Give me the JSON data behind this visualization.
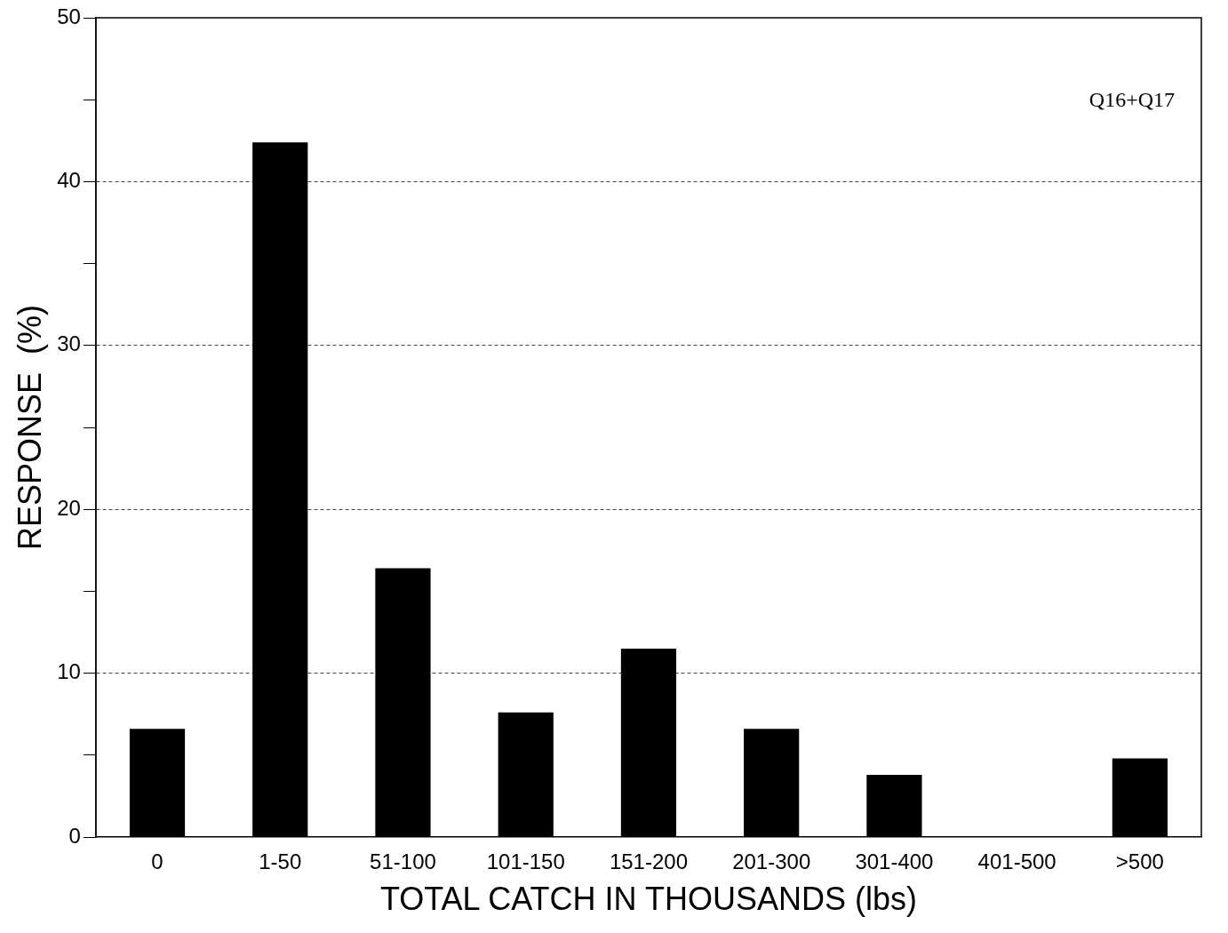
{
  "chart_data": {
    "type": "bar",
    "xlabel": "TOTAL CATCH IN THOUSANDS (lbs)",
    "ylabel": "RESPONSE  (%)",
    "categories": [
      "0",
      "1-50",
      "51-100",
      "101-150",
      "151-200",
      "201-300",
      "301-400",
      "401-500",
      ">500"
    ],
    "values": [
      6.6,
      42.4,
      16.4,
      7.6,
      11.5,
      6.6,
      3.8,
      0,
      4.8
    ],
    "color": "#000000",
    "ylim": [
      0,
      50
    ],
    "yticks": [
      0,
      {
        "value": 5,
        "label": null
      },
      10,
      {
        "value": 15,
        "label": null
      },
      20,
      {
        "value": 25,
        "label": null
      },
      30,
      {
        "value": 35,
        "label": null
      },
      40,
      {
        "value": 45,
        "label": null
      },
      50
    ],
    "grid": "y",
    "annotations": [
      "Q16+Q17"
    ]
  }
}
